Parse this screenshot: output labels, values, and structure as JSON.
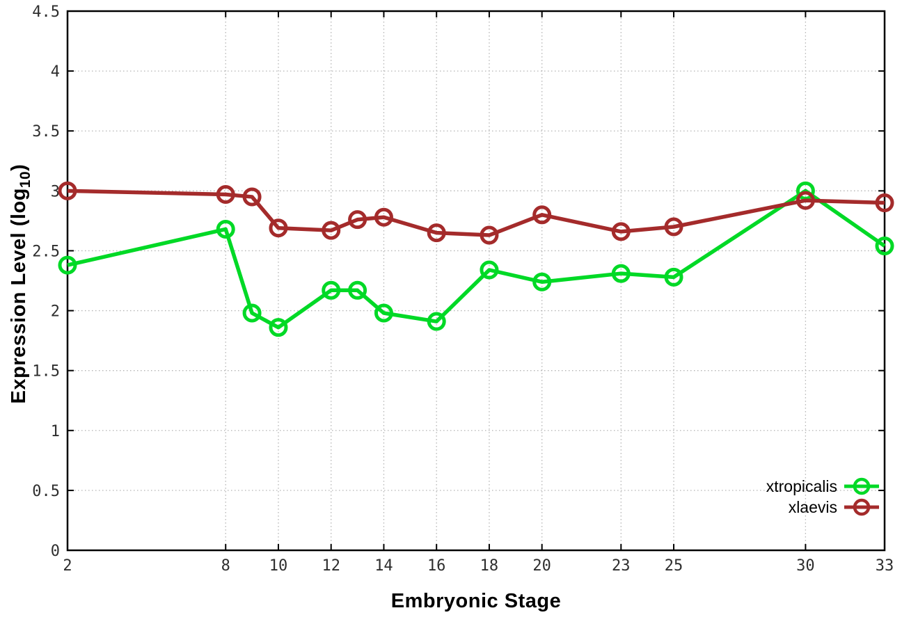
{
  "chart_data": {
    "type": "line",
    "title": "",
    "xlabel": "Embryonic Stage",
    "ylabel": "Expression Level (log10)",
    "ylabel_prefix": "Expression Level (log",
    "ylabel_sub": "10",
    "ylabel_suffix": ")",
    "xlim": [
      2,
      33
    ],
    "ylim": [
      0,
      4.5
    ],
    "grid": true,
    "legend_position": "inside-bottom-right",
    "x_ticks": [
      2,
      8,
      10,
      12,
      14,
      16,
      18,
      20,
      23,
      25,
      30,
      33
    ],
    "y_ticks": [
      0,
      0.5,
      1,
      1.5,
      2,
      2.5,
      3,
      3.5,
      4,
      4.5
    ],
    "y_tick_labels": [
      "0",
      "0.5",
      "1",
      "1.5",
      "2",
      "2.5",
      "3",
      "3.5",
      "4",
      "4.5"
    ],
    "x": [
      2,
      8,
      9,
      10,
      12,
      13,
      14,
      16,
      18,
      20,
      23,
      25,
      30,
      33
    ],
    "series": [
      {
        "name": "xtropicalis",
        "color": "#00d926",
        "values": [
          2.38,
          2.68,
          1.98,
          1.86,
          2.17,
          2.17,
          1.98,
          1.91,
          2.34,
          2.24,
          2.31,
          2.28,
          3.0,
          2.54
        ]
      },
      {
        "name": "xlaevis",
        "color": "#a42b2b",
        "values": [
          3.0,
          2.97,
          2.95,
          2.69,
          2.67,
          2.76,
          2.78,
          2.65,
          2.63,
          2.8,
          2.66,
          2.7,
          2.92,
          2.9
        ]
      }
    ],
    "colors": {
      "grid": "#b4b4b4",
      "border": "#000000",
      "tick_text": "#2e2e2e"
    }
  }
}
